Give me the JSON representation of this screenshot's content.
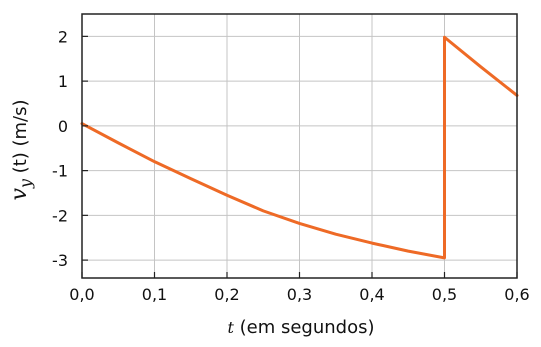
{
  "chart_data": {
    "type": "line",
    "xlabel_var": "t",
    "xlabel_rest": " (em segundos)",
    "ylabel_var": "v",
    "ylabel_sub": "y",
    "ylabel_rest": " (t) (m/s)",
    "xlim": [
      0,
      0.6
    ],
    "ylim": [
      -3.4,
      2.5
    ],
    "x_ticks": [
      {
        "value": 0.0,
        "label": "0,0"
      },
      {
        "value": 0.1,
        "label": "0,1"
      },
      {
        "value": 0.2,
        "label": "0,2"
      },
      {
        "value": 0.3,
        "label": "0,3"
      },
      {
        "value": 0.4,
        "label": "0,4"
      },
      {
        "value": 0.5,
        "label": "0,5"
      },
      {
        "value": 0.6,
        "label": "0,6"
      }
    ],
    "y_ticks": [
      {
        "value": 2,
        "label": "2"
      },
      {
        "value": 1,
        "label": "1"
      },
      {
        "value": 0,
        "label": "0"
      },
      {
        "value": -1,
        "label": "-1"
      },
      {
        "value": -2,
        "label": "-2"
      },
      {
        "value": -3,
        "label": "-3"
      }
    ],
    "grid": true,
    "line_color": "#ee6a26",
    "series": [
      {
        "x": [
          0.0,
          0.05,
          0.1,
          0.15,
          0.2,
          0.25,
          0.3,
          0.35,
          0.4,
          0.45,
          0.5,
          0.5,
          0.55,
          0.6
        ],
        "y": [
          0.05,
          -0.38,
          -0.8,
          -1.18,
          -1.55,
          -1.9,
          -2.18,
          -2.42,
          -2.62,
          -2.8,
          -2.95,
          1.98,
          1.32,
          0.68
        ]
      }
    ]
  }
}
